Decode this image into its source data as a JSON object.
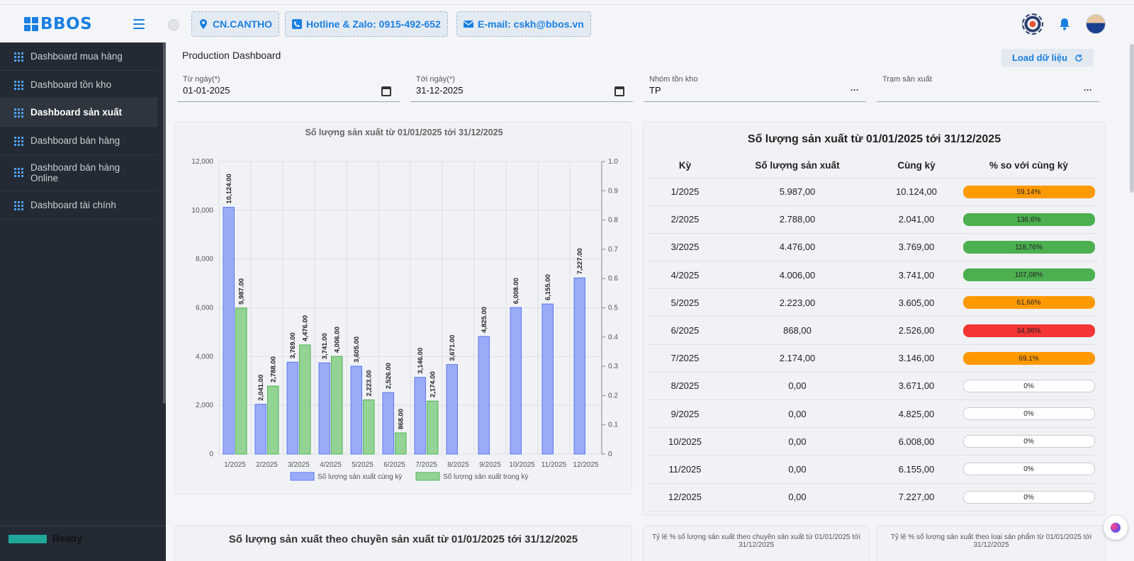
{
  "app": {
    "logo": "BBOS"
  },
  "header": {
    "branch": "CN.CANTHO",
    "hotline": "Hotline & Zalo: 0915-492-652",
    "email": "E-mail: cskh@bbos.vn"
  },
  "sidebar": {
    "items": [
      {
        "label": "Dashboard mua hàng"
      },
      {
        "label": "Dashboard tồn kho"
      },
      {
        "label": "Dashboard sản xuất"
      },
      {
        "label": "Dashboard bán hàng"
      },
      {
        "label": "Dashboard bán hàng Online"
      },
      {
        "label": "Dashboard tài chính"
      }
    ],
    "status": "Ready"
  },
  "page": {
    "title": "Production Dashboard",
    "load_button": "Load dữ liệu"
  },
  "filters": {
    "from": {
      "label": "Từ ngày(*)",
      "value": "01-01-2025"
    },
    "to": {
      "label": "Tới ngày(*)",
      "value": "31-12-2025"
    },
    "group": {
      "label": "Nhóm tồn kho",
      "value": "TP",
      "more": "···"
    },
    "station": {
      "label": "Trạm sản xuất",
      "value": "",
      "more": "···"
    }
  },
  "table": {
    "title": "Số lượng sản xuất từ 01/01/2025 tới 31/12/2025",
    "headers": [
      "Kỳ",
      "Số lượng sản xuất",
      "Cùng kỳ",
      "% so với cùng kỳ"
    ],
    "rows": [
      {
        "period": "1/2025",
        "qty": "5.987,00",
        "prev": "10.124,00",
        "pct": "59,14%",
        "status": "orange"
      },
      {
        "period": "2/2025",
        "qty": "2.788,00",
        "prev": "2.041,00",
        "pct": "136,6%",
        "status": "green"
      },
      {
        "period": "3/2025",
        "qty": "4.476,00",
        "prev": "3.769,00",
        "pct": "118,76%",
        "status": "green"
      },
      {
        "period": "4/2025",
        "qty": "4.006,00",
        "prev": "3.741,00",
        "pct": "107,08%",
        "status": "green"
      },
      {
        "period": "5/2025",
        "qty": "2.223,00",
        "prev": "3.605,00",
        "pct": "61,66%",
        "status": "orange"
      },
      {
        "period": "6/2025",
        "qty": "868,00",
        "prev": "2.526,00",
        "pct": "34,36%",
        "status": "red"
      },
      {
        "period": "7/2025",
        "qty": "2.174,00",
        "prev": "3.146,00",
        "pct": "69,1%",
        "status": "orange"
      },
      {
        "period": "8/2025",
        "qty": "0,00",
        "prev": "3.671,00",
        "pct": "0%",
        "status": "none"
      },
      {
        "period": "9/2025",
        "qty": "0,00",
        "prev": "4.825,00",
        "pct": "0%",
        "status": "none"
      },
      {
        "period": "10/2025",
        "qty": "0,00",
        "prev": "6.008,00",
        "pct": "0%",
        "status": "none"
      },
      {
        "period": "11/2025",
        "qty": "0,00",
        "prev": "6.155,00",
        "pct": "0%",
        "status": "none"
      },
      {
        "period": "12/2025",
        "qty": "0,00",
        "prev": "7.227,00",
        "pct": "0%",
        "status": "none"
      }
    ]
  },
  "bottom": {
    "chart1_title": "Số lượng sản xuất theo chuyền sản xuất từ 01/01/2025 tới 31/12/2025",
    "chart2_title": "Tỷ lệ % số lượng sản xuất theo chuyền sản xuất từ 01/01/2025 tới 31/12/2025",
    "chart3_title": "Tỷ lệ % số lượng sản xuất theo loại sản phẩm từ 01/01/2025 tới 31/12/2025"
  },
  "colors": {
    "accent": "#1a7fe0",
    "prev_bar": "#9aacf7",
    "cur_bar": "#93d394"
  },
  "chart_data": {
    "type": "bar",
    "title": "Số lượng sản xuất từ 01/01/2025 tới 31/12/2025",
    "categories": [
      "1/2025",
      "2/2025",
      "3/2025",
      "4/2025",
      "5/2025",
      "6/2025",
      "7/2025",
      "8/2025",
      "9/2025",
      "10/2025",
      "11/2025",
      "12/2025"
    ],
    "series": [
      {
        "name": "Số lượng sản xuất cùng kỳ",
        "values": [
          10124,
          2041,
          3769,
          3741,
          3605,
          2526,
          3146,
          3671,
          4825,
          6008,
          6155,
          7227
        ],
        "labels": [
          "10,124.00",
          "2,041.00",
          "3,769.00",
          "3,741.00",
          "3,605.00",
          "2,526.00",
          "3,146.00",
          "3,671.00",
          "4,825.00",
          "6,008.00",
          "6,155.00",
          "7,227.00"
        ]
      },
      {
        "name": "Số lượng sản xuất trong kỳ",
        "values": [
          5987,
          2788,
          4476,
          4006,
          2223,
          868,
          2174,
          null,
          null,
          null,
          null,
          null
        ],
        "labels": [
          "5,987.00",
          "2,788.00",
          "4,476.00",
          "4,006.00",
          "2,223.00",
          "868.00",
          "2,174.00",
          "",
          "",
          "",
          "",
          ""
        ]
      }
    ],
    "ylim": [
      0,
      12000
    ],
    "yticks": [
      "0",
      "2,000",
      "4,000",
      "6,000",
      "8,000",
      "10,000",
      "12,000"
    ],
    "y2lim": [
      0,
      1
    ],
    "y2ticks": [
      "0",
      "0.1",
      "0.2",
      "0.3",
      "0.4",
      "0.5",
      "0.6",
      "0.7",
      "0.8",
      "0.9",
      "1.0"
    ],
    "legend": "bottom"
  }
}
